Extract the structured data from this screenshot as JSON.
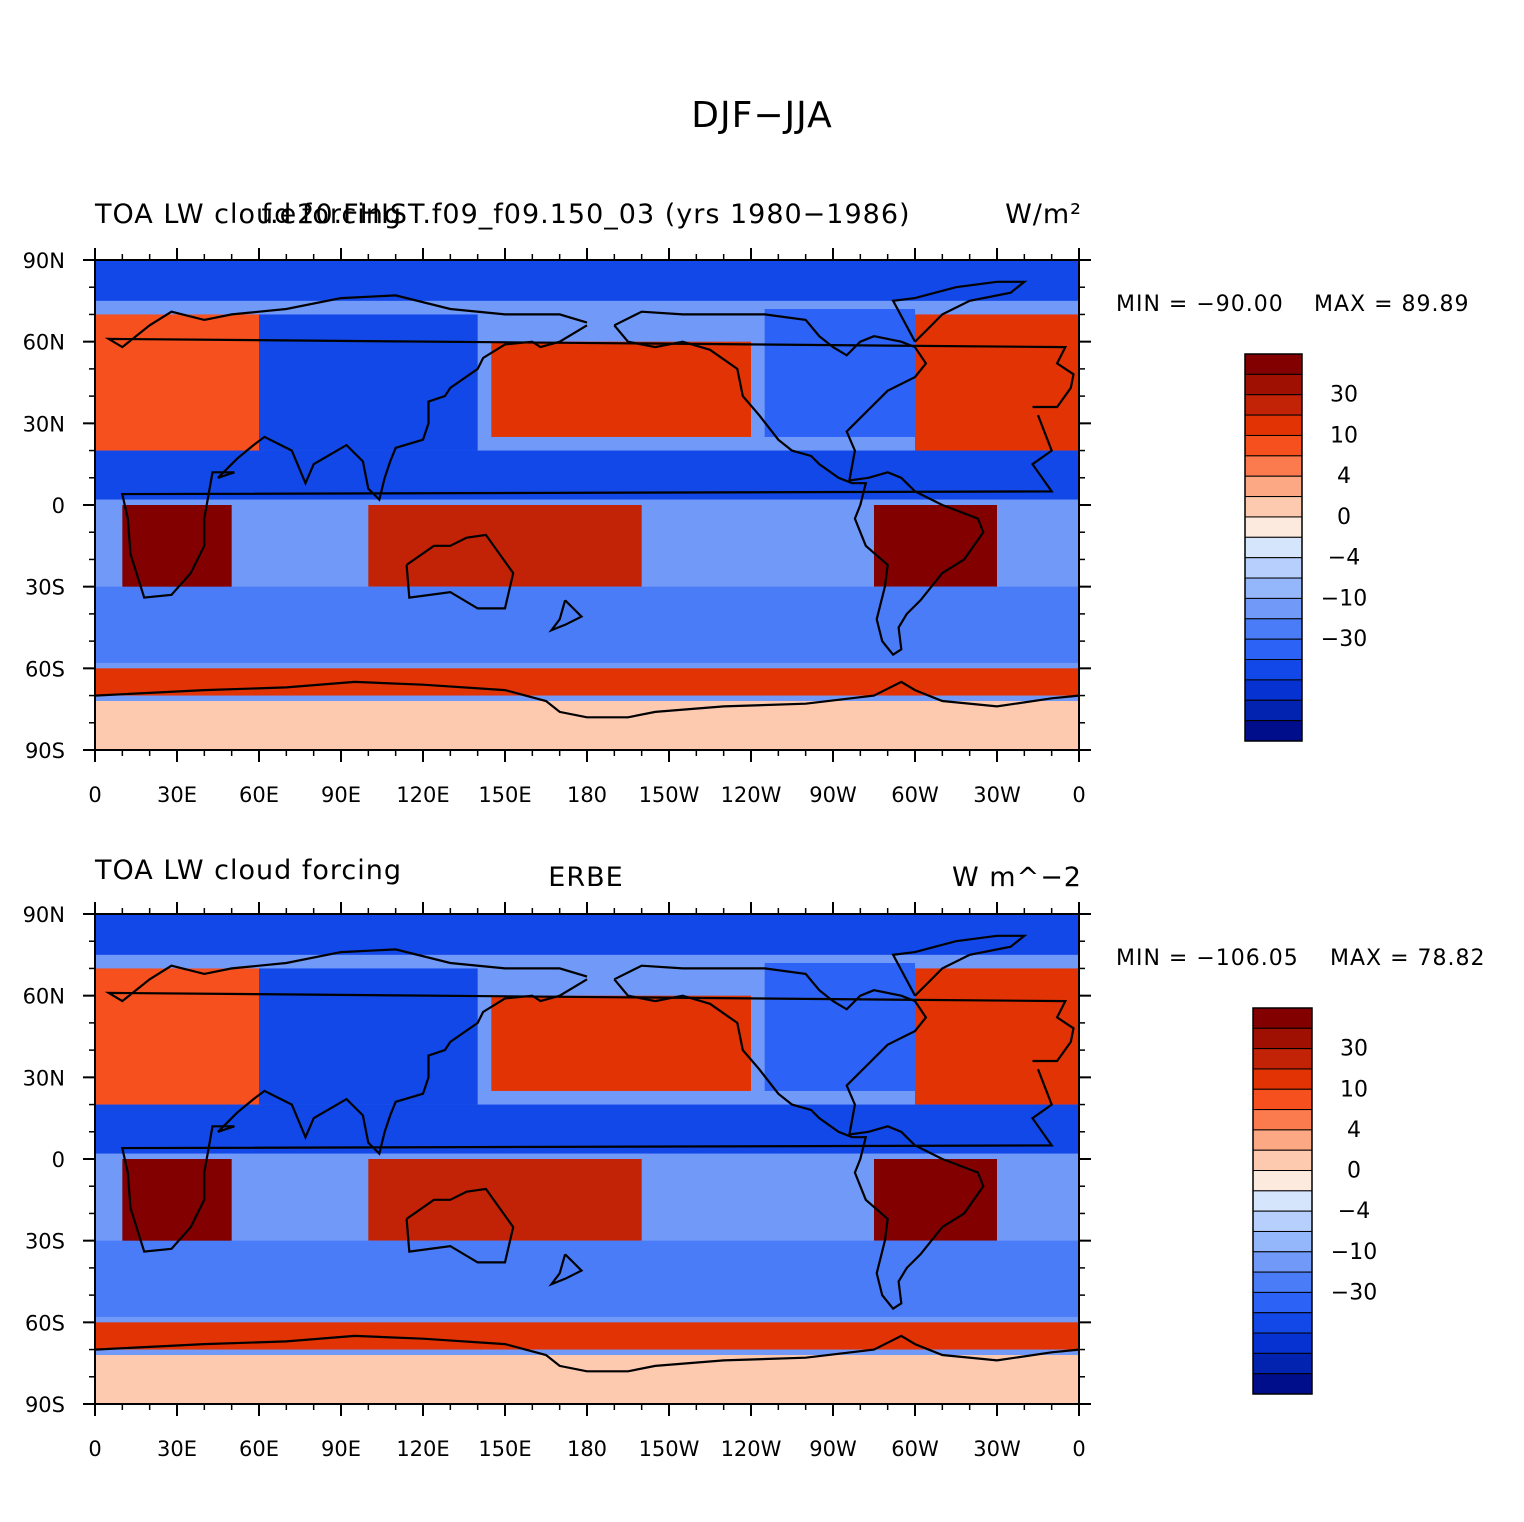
{
  "title": "DJF−JJA",
  "colorbar": {
    "colors": [
      "#000e8c",
      "#0222b0",
      "#0732d2",
      "#1248e8",
      "#2d62f6",
      "#4a7cf8",
      "#7199f8",
      "#94b6fb",
      "#b6cffc",
      "#d4e5fc",
      "#fdeade",
      "#fdcab0",
      "#fca884",
      "#fb7a4e",
      "#f6501e",
      "#e23305",
      "#c22205",
      "#a01002",
      "#820000"
    ],
    "labels": [
      "30",
      "10",
      "4",
      "0",
      "−4",
      "−10",
      "−30"
    ]
  },
  "panels": [
    {
      "id": "top",
      "title_left": "TOA LW cloud forcing",
      "title_center": "f.e20.FHIST.f09_f09.150_03 (yrs 1980−1986)",
      "title_right": "W/m²",
      "min_label": "MIN = −90.00",
      "max_label": "MAX =  89.89",
      "lat_labels": [
        "90N",
        "60N",
        "30N",
        "0",
        "30S",
        "60S",
        "90S"
      ],
      "lon_labels": [
        "0",
        "30E",
        "60E",
        "90E",
        "120E",
        "150E",
        "180",
        "150W",
        "120W",
        "90W",
        "60W",
        "30W",
        "0"
      ]
    },
    {
      "id": "bottom",
      "title_left": "TOA LW cloud forcing",
      "title_center": "ERBE",
      "title_right": "W m^−2",
      "min_label": "MIN = −106.05",
      "max_label": "MAX =  78.82",
      "lat_labels": [
        "90N",
        "60N",
        "30N",
        "0",
        "30S",
        "60S",
        "90S"
      ],
      "lon_labels": [
        "0",
        "30E",
        "60E",
        "90E",
        "120E",
        "150E",
        "180",
        "150W",
        "120W",
        "90W",
        "60W",
        "30W",
        "0"
      ]
    }
  ],
  "map_regions": [
    {
      "name": "arctic-ocean",
      "lon": [
        0,
        360
      ],
      "lat": [
        75,
        90
      ],
      "level": 3
    },
    {
      "name": "north-atlantic",
      "lon": [
        300,
        360
      ],
      "lat": [
        20,
        70
      ],
      "level": 15
    },
    {
      "name": "europe-north-africa",
      "lon": [
        0,
        60
      ],
      "lat": [
        20,
        70
      ],
      "level": 14
    },
    {
      "name": "asia",
      "lon": [
        60,
        140
      ],
      "lat": [
        20,
        70
      ],
      "level": 3
    },
    {
      "name": "north-pacific",
      "lon": [
        145,
        240
      ],
      "lat": [
        25,
        60
      ],
      "level": 15
    },
    {
      "name": "north-america",
      "lon": [
        245,
        300
      ],
      "lat": [
        25,
        72
      ],
      "level": 4
    },
    {
      "name": "intertropical-band",
      "lon": [
        0,
        360
      ],
      "lat": [
        2,
        20
      ],
      "level": 3
    },
    {
      "name": "southern-africa",
      "lon": [
        10,
        50
      ],
      "lat": [
        -35,
        0
      ],
      "level": 18
    },
    {
      "name": "maritime-continent-australia",
      "lon": [
        100,
        200
      ],
      "lat": [
        -30,
        0
      ],
      "level": 16
    },
    {
      "name": "south-america",
      "lon": [
        285,
        330
      ],
      "lat": [
        -30,
        0
      ],
      "level": 18
    },
    {
      "name": "southern-ocean",
      "lon": [
        0,
        360
      ],
      "lat": [
        -58,
        -30
      ],
      "level": 5
    },
    {
      "name": "circumpolar-band",
      "lon": [
        0,
        360
      ],
      "lat": [
        -70,
        -60
      ],
      "level": 15
    },
    {
      "name": "antarctica",
      "lon": [
        0,
        360
      ],
      "lat": [
        -90,
        -72
      ],
      "level": 11
    }
  ]
}
